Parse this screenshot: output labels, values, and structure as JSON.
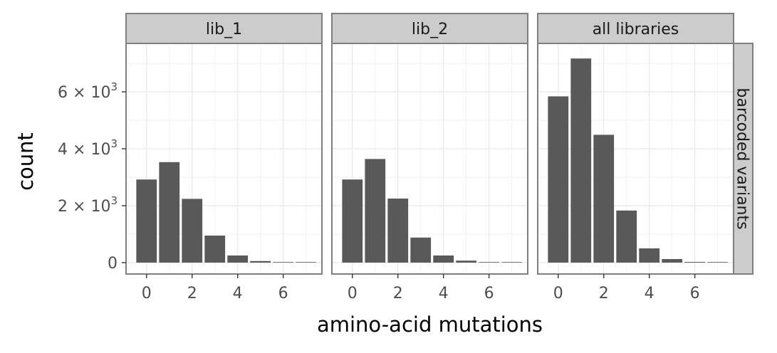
{
  "chart_data": {
    "type": "bar",
    "title": "",
    "xlabel": "amino-acid mutations",
    "ylabel": "count",
    "row_strip": "barcoded variants",
    "x": [
      0,
      1,
      2,
      3,
      4,
      5,
      6,
      7
    ],
    "xlim": [
      -0.9,
      7.7
    ],
    "ylim": [
      -400,
      7700
    ],
    "x_ticks": [
      0,
      2,
      4,
      6
    ],
    "x_tick_labels": [
      "0",
      "2",
      "4",
      "6"
    ],
    "y_ticks": [
      0,
      2000,
      4000,
      6000
    ],
    "y_tick_labels": [
      {
        "mantissa": "0",
        "exponent": ""
      },
      {
        "mantissa": "2 × 10",
        "exponent": "3"
      },
      {
        "mantissa": "4 × 10",
        "exponent": "3"
      },
      {
        "mantissa": "6 × 10",
        "exponent": "3"
      }
    ],
    "grid": true,
    "bar_color": "#595959",
    "panels": [
      {
        "name": "lib_1",
        "values": [
          2920,
          3530,
          2240,
          950,
          250,
          55,
          12,
          2
        ]
      },
      {
        "name": "lib_2",
        "values": [
          2920,
          3640,
          2250,
          880,
          250,
          70,
          12,
          2
        ]
      },
      {
        "name": "all libraries",
        "values": [
          5840,
          7170,
          4490,
          1830,
          500,
          125,
          24,
          4
        ]
      }
    ]
  }
}
